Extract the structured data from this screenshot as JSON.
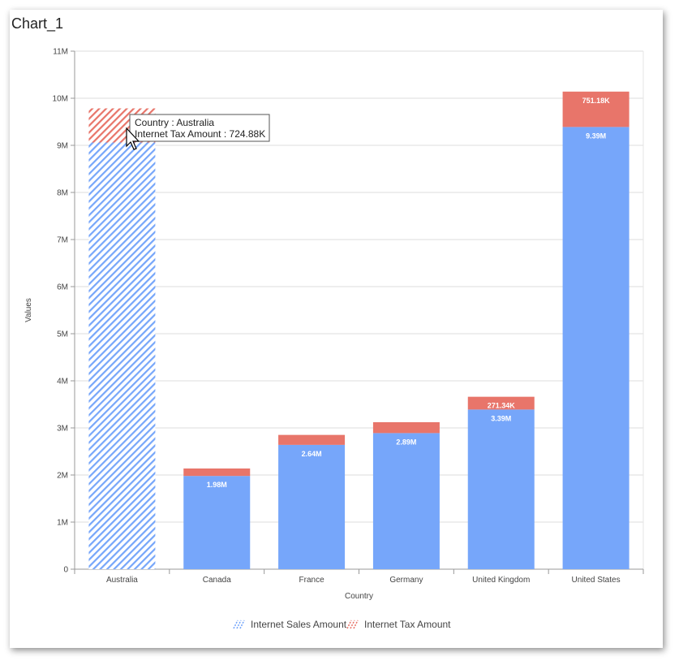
{
  "title": "Chart_1",
  "chart_data": {
    "type": "bar",
    "stacked": true,
    "categories": [
      "Australia",
      "Canada",
      "France",
      "Germany",
      "United Kingdom",
      "United States"
    ],
    "series": [
      {
        "name": "Internet Sales Amount",
        "values": [
          9060000,
          1980000,
          2640000,
          2890000,
          3390000,
          9390000
        ],
        "labels": [
          "9.06M",
          "1.98M",
          "2.64M",
          "2.89M",
          "3.39M",
          "9.39M"
        ],
        "color": "#76a6fa"
      },
      {
        "name": "Internet Tax Amount",
        "values": [
          724880,
          158300,
          211300,
          231200,
          271340,
          751180
        ],
        "labels": [
          "724.88K",
          "158.30K",
          "211.30K",
          "231.20K",
          "271.34K",
          "751.18K"
        ],
        "color": "#e8756a"
      }
    ],
    "visible_labels": {
      "Internet Sales Amount": [
        false,
        true,
        true,
        true,
        true,
        true
      ],
      "Internet Tax Amount": [
        false,
        false,
        false,
        false,
        true,
        true
      ]
    },
    "xlabel": "Country",
    "ylabel": "Values",
    "ylim": [
      0,
      11000000
    ],
    "yticks": [
      "0",
      "1M",
      "2M",
      "3M",
      "4M",
      "5M",
      "6M",
      "7M",
      "8M",
      "9M",
      "10M",
      "11M"
    ],
    "grid": true,
    "legend": "bottom-center",
    "highlighted_category": "Australia"
  },
  "tooltip": {
    "line1": "Country : Australia",
    "line2": "Internet Tax Amount : 724.88K"
  }
}
